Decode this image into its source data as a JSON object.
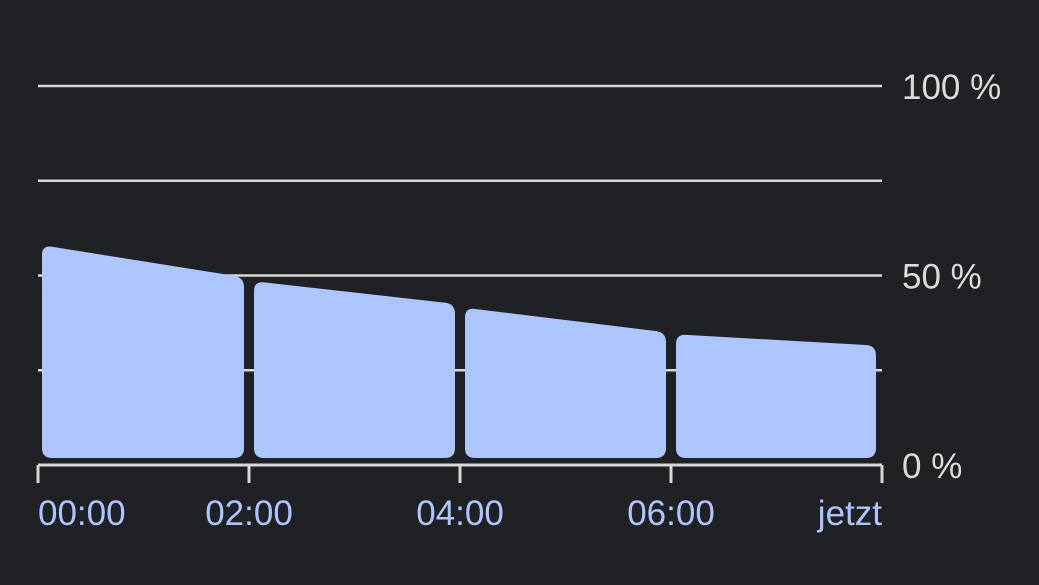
{
  "chart_data": {
    "type": "area",
    "title": "",
    "xlabel": "",
    "ylabel": "",
    "ylim": [
      0,
      100
    ],
    "y_unit": "%",
    "y_ticks": [
      {
        "value": 0,
        "label": "0 %"
      },
      {
        "value": 25,
        "label": ""
      },
      {
        "value": 50,
        "label": "50 %"
      },
      {
        "value": 75,
        "label": ""
      },
      {
        "value": 100,
        "label": "100 %"
      }
    ],
    "x_ticks": [
      "00:00",
      "02:00",
      "04:00",
      "06:00",
      "jetzt"
    ],
    "grid": true,
    "colors": {
      "background": "#202125",
      "fill": "#aec6ff",
      "grid": "#d8d8d8",
      "y_label": "#dcdcdc",
      "x_label": "#aec6ff"
    },
    "segments": [
      {
        "start": "00:00",
        "end": "02:00",
        "start_value": 58,
        "end_value": 49.5
      },
      {
        "start": "02:00",
        "end": "04:00",
        "start_value": 48.5,
        "end_value": 42.5
      },
      {
        "start": "04:00",
        "end": "06:00",
        "start_value": 41.5,
        "end_value": 35
      },
      {
        "start": "06:00",
        "end": "jetzt",
        "start_value": 34.5,
        "end_value": 31.5
      }
    ]
  }
}
